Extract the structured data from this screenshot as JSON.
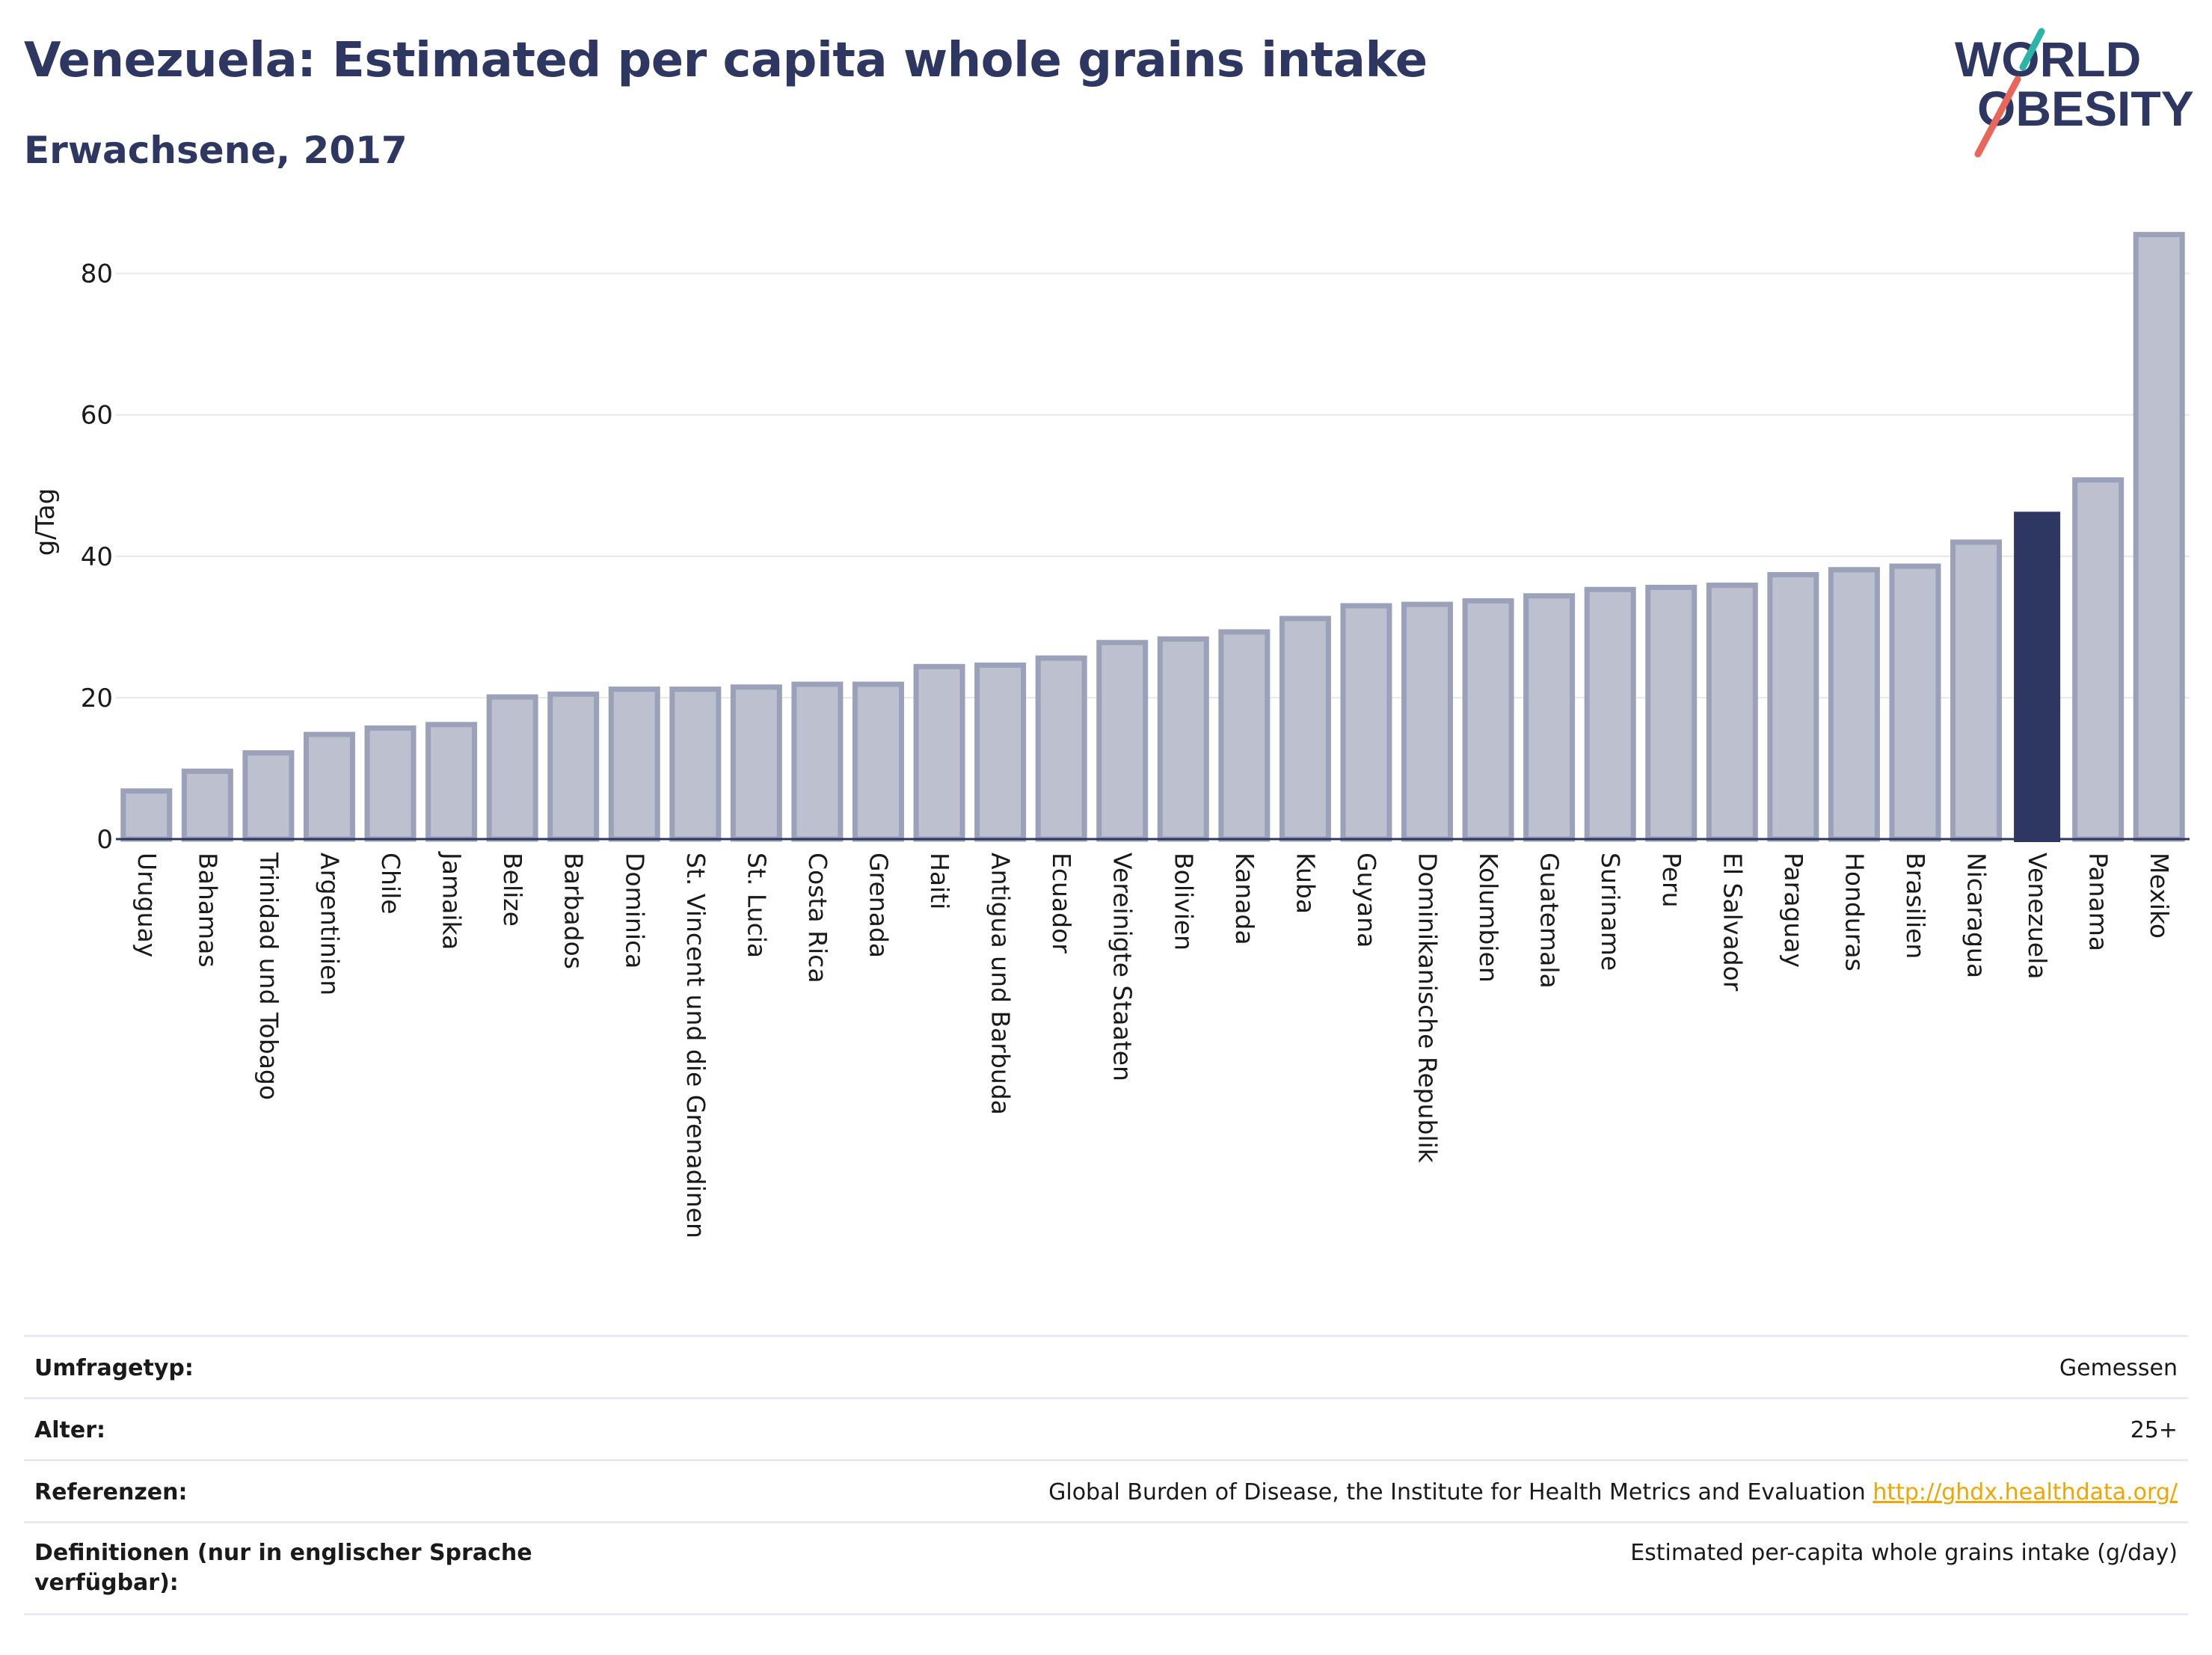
{
  "header": {
    "title": "Venezuela: Estimated per capita whole grains intake",
    "subtitle": "Erwachsene, 2017"
  },
  "logo": {
    "line1": "WORLD",
    "line2": "OBESITY",
    "colors": {
      "text": "#2d3761",
      "slash_top": "#2bb5a7",
      "slash_bottom": "#e8675a"
    }
  },
  "colors": {
    "bar": "#bcc0cf",
    "bar_border": "#9ba1b8",
    "highlight": "#2d3761",
    "grid": "#e6e8ef",
    "axis": "#2d3761"
  },
  "chart_data": {
    "type": "bar",
    "ylabel": "g/Tag",
    "ylim": [
      0,
      88
    ],
    "yticks": [
      0,
      20,
      40,
      60,
      80
    ],
    "grid": true,
    "highlight": "Venezuela",
    "categories": [
      "Uruguay",
      "Bahamas",
      "Trinidad und Tobago",
      "Argentinien",
      "Chile",
      "Jamaika",
      "Belize",
      "Barbados",
      "Dominica",
      "St. Vincent und die Grenadinen",
      "St. Lucia",
      "Costa Rica",
      "Grenada",
      "Haiti",
      "Antigua und Barbuda",
      "Ecuador",
      "Vereinigte Staaten",
      "Bolivien",
      "Kanada",
      "Kuba",
      "Guyana",
      "Dominikanische Republik",
      "Kolumbien",
      "Guatemala",
      "Suriname",
      "Peru",
      "El Salvador",
      "Paraguay",
      "Honduras",
      "Brasilien",
      "Nicaragua",
      "Venezuela",
      "Panama",
      "Mexiko"
    ],
    "values": [
      6.8,
      9.6,
      12.2,
      14.8,
      15.7,
      16.2,
      20.1,
      20.5,
      21.2,
      21.2,
      21.5,
      21.9,
      21.9,
      24.4,
      24.6,
      25.6,
      27.8,
      28.3,
      29.3,
      31.2,
      33.0,
      33.2,
      33.7,
      34.4,
      35.3,
      35.6,
      35.9,
      37.4,
      38.1,
      38.6,
      42.0,
      46.3,
      50.8,
      85.5
    ]
  },
  "info": {
    "rows": [
      {
        "label": "Umfragetyp:",
        "value": "Gemessen"
      },
      {
        "label": "Alter:",
        "value": "25+"
      },
      {
        "label": "Referenzen:",
        "value": "Global Burden of Disease, the Institute for Health Metrics and Evaluation",
        "link": "http://ghdx.healthdata.org/"
      },
      {
        "label": "Definitionen (nur in englischer Sprache verfügbar):",
        "value": "Estimated per-capita whole grains intake (g/day)"
      }
    ]
  }
}
